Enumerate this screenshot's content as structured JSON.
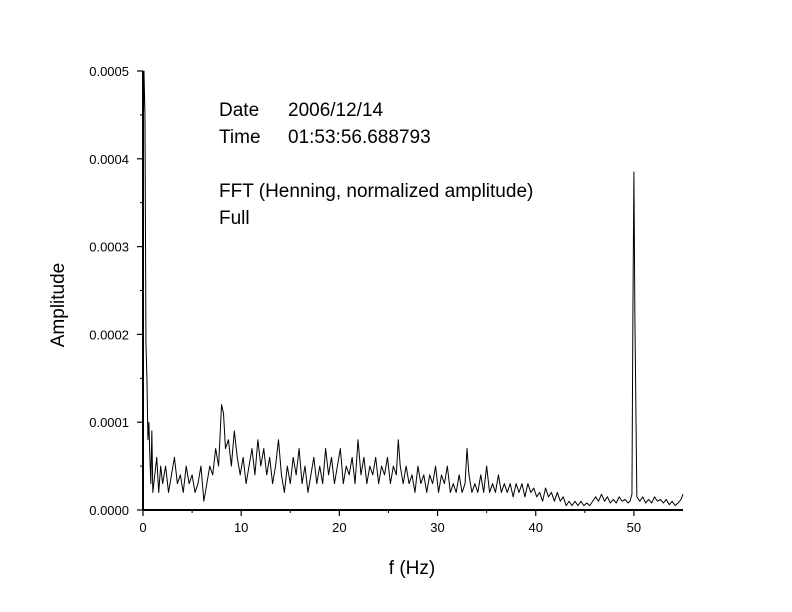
{
  "chart_data": {
    "type": "line",
    "title": "",
    "xlabel": "f (Hz)",
    "ylabel": "Amplitude",
    "xlim": [
      0,
      55
    ],
    "ylim": [
      0,
      0.0005
    ],
    "x_ticks": [
      "0",
      "10",
      "20",
      "30",
      "40",
      "50"
    ],
    "x_tick_values": [
      0,
      10,
      20,
      30,
      40,
      50
    ],
    "y_ticks": [
      "0.0000",
      "0.0001",
      "0.0002",
      "0.0003",
      "0.0004",
      "0.0005"
    ],
    "y_tick_values": [
      0,
      0.0001,
      0.0002,
      0.0003,
      0.0004,
      0.0005
    ],
    "grid": false,
    "annotations": {
      "date_label": "Date",
      "date_value": "2006/12/14",
      "time_label": "Time",
      "time_value": "01:53:56.688793",
      "method": "FFT (Henning, normalized amplitude)",
      "range": "Full"
    },
    "series": [
      {
        "color": "#000000",
        "points": [
          [
            0.0,
            0.0004
          ],
          [
            0.1,
            0.0005
          ],
          [
            0.2,
            0.00045
          ],
          [
            0.3,
            0.00019
          ],
          [
            0.4,
            0.00015
          ],
          [
            0.5,
            8e-05
          ],
          [
            0.6,
            0.0001
          ],
          [
            0.7,
            6e-05
          ],
          [
            0.8,
            3e-05
          ],
          [
            0.9,
            9e-05
          ],
          [
            1.0,
            2e-05
          ],
          [
            1.2,
            4e-05
          ],
          [
            1.4,
            6e-05
          ],
          [
            1.6,
            2e-05
          ],
          [
            1.8,
            5e-05
          ],
          [
            2.0,
            3e-05
          ],
          [
            2.3,
            5e-05
          ],
          [
            2.6,
            2e-05
          ],
          [
            2.9,
            4e-05
          ],
          [
            3.2,
            6e-05
          ],
          [
            3.5,
            3e-05
          ],
          [
            3.8,
            4e-05
          ],
          [
            4.1,
            2e-05
          ],
          [
            4.4,
            5e-05
          ],
          [
            4.7,
            3e-05
          ],
          [
            5.0,
            4e-05
          ],
          [
            5.3,
            2e-05
          ],
          [
            5.6,
            3e-05
          ],
          [
            5.9,
            5e-05
          ],
          [
            6.2,
            1e-05
          ],
          [
            6.5,
            3e-05
          ],
          [
            6.8,
            5e-05
          ],
          [
            7.1,
            4e-05
          ],
          [
            7.4,
            7e-05
          ],
          [
            7.7,
            5e-05
          ],
          [
            8.0,
            0.00012
          ],
          [
            8.2,
            0.00011
          ],
          [
            8.4,
            7e-05
          ],
          [
            8.7,
            8e-05
          ],
          [
            9.0,
            5e-05
          ],
          [
            9.3,
            9e-05
          ],
          [
            9.6,
            6e-05
          ],
          [
            9.9,
            4e-05
          ],
          [
            10.2,
            6e-05
          ],
          [
            10.5,
            3e-05
          ],
          [
            10.8,
            5e-05
          ],
          [
            11.1,
            7e-05
          ],
          [
            11.4,
            4e-05
          ],
          [
            11.7,
            8e-05
          ],
          [
            12.0,
            5e-05
          ],
          [
            12.3,
            7e-05
          ],
          [
            12.6,
            4e-05
          ],
          [
            12.9,
            6e-05
          ],
          [
            13.2,
            3e-05
          ],
          [
            13.5,
            5e-05
          ],
          [
            13.8,
            8e-05
          ],
          [
            14.1,
            4e-05
          ],
          [
            14.4,
            2e-05
          ],
          [
            14.7,
            5e-05
          ],
          [
            15.0,
            3e-05
          ],
          [
            15.3,
            6e-05
          ],
          [
            15.6,
            4e-05
          ],
          [
            15.9,
            7e-05
          ],
          [
            16.2,
            3e-05
          ],
          [
            16.5,
            5e-05
          ],
          [
            16.8,
            2e-05
          ],
          [
            17.1,
            4e-05
          ],
          [
            17.4,
            6e-05
          ],
          [
            17.7,
            3e-05
          ],
          [
            18.0,
            5e-05
          ],
          [
            18.3,
            3e-05
          ],
          [
            18.6,
            7e-05
          ],
          [
            18.9,
            4e-05
          ],
          [
            19.2,
            6e-05
          ],
          [
            19.5,
            3e-05
          ],
          [
            19.8,
            5e-05
          ],
          [
            20.1,
            7e-05
          ],
          [
            20.4,
            3e-05
          ],
          [
            20.7,
            5e-05
          ],
          [
            21.0,
            4e-05
          ],
          [
            21.3,
            6e-05
          ],
          [
            21.6,
            3e-05
          ],
          [
            21.9,
            8e-05
          ],
          [
            22.2,
            4e-05
          ],
          [
            22.5,
            6e-05
          ],
          [
            22.8,
            3e-05
          ],
          [
            23.1,
            5e-05
          ],
          [
            23.4,
            4e-05
          ],
          [
            23.7,
            6e-05
          ],
          [
            24.0,
            3e-05
          ],
          [
            24.3,
            5e-05
          ],
          [
            24.6,
            4e-05
          ],
          [
            24.9,
            6e-05
          ],
          [
            25.2,
            3e-05
          ],
          [
            25.5,
            5e-05
          ],
          [
            25.8,
            4e-05
          ],
          [
            26.0,
            8e-05
          ],
          [
            26.2,
            5e-05
          ],
          [
            26.5,
            3e-05
          ],
          [
            26.8,
            5e-05
          ],
          [
            27.1,
            3e-05
          ],
          [
            27.4,
            4e-05
          ],
          [
            27.7,
            2e-05
          ],
          [
            28.0,
            5e-05
          ],
          [
            28.3,
            3e-05
          ],
          [
            28.6,
            4e-05
          ],
          [
            28.9,
            2e-05
          ],
          [
            29.2,
            4e-05
          ],
          [
            29.5,
            3e-05
          ],
          [
            29.8,
            5e-05
          ],
          [
            30.1,
            2e-05
          ],
          [
            30.4,
            4e-05
          ],
          [
            30.7,
            3e-05
          ],
          [
            31.0,
            5e-05
          ],
          [
            31.3,
            2e-05
          ],
          [
            31.6,
            3e-05
          ],
          [
            31.9,
            2e-05
          ],
          [
            32.2,
            4e-05
          ],
          [
            32.5,
            2e-05
          ],
          [
            32.8,
            3e-05
          ],
          [
            33.0,
            7e-05
          ],
          [
            33.2,
            4e-05
          ],
          [
            33.5,
            2e-05
          ],
          [
            33.8,
            3e-05
          ],
          [
            34.1,
            2e-05
          ],
          [
            34.4,
            4e-05
          ],
          [
            34.7,
            2e-05
          ],
          [
            35.0,
            5e-05
          ],
          [
            35.3,
            2e-05
          ],
          [
            35.6,
            3e-05
          ],
          [
            35.9,
            2e-05
          ],
          [
            36.2,
            4e-05
          ],
          [
            36.5,
            2e-05
          ],
          [
            36.8,
            3e-05
          ],
          [
            37.1,
            2e-05
          ],
          [
            37.4,
            3e-05
          ],
          [
            37.7,
            1.5e-05
          ],
          [
            38.0,
            3e-05
          ],
          [
            38.3,
            2e-05
          ],
          [
            38.6,
            3e-05
          ],
          [
            38.9,
            1.5e-05
          ],
          [
            39.2,
            3e-05
          ],
          [
            39.5,
            2e-05
          ],
          [
            39.8,
            2.5e-05
          ],
          [
            40.1,
            1.5e-05
          ],
          [
            40.4,
            2e-05
          ],
          [
            40.7,
            1e-05
          ],
          [
            41.0,
            2.5e-05
          ],
          [
            41.3,
            1.5e-05
          ],
          [
            41.6,
            2e-05
          ],
          [
            41.9,
            1e-05
          ],
          [
            42.2,
            2e-05
          ],
          [
            42.5,
            1e-05
          ],
          [
            42.8,
            1.5e-05
          ],
          [
            43.1,
            5e-06
          ],
          [
            43.4,
            1e-05
          ],
          [
            43.7,
            5e-06
          ],
          [
            44.0,
            1e-05
          ],
          [
            44.3,
            5e-06
          ],
          [
            44.6,
            1e-05
          ],
          [
            44.9,
            5e-06
          ],
          [
            45.2,
            8e-06
          ],
          [
            45.5,
            5e-06
          ],
          [
            45.8,
            1e-05
          ],
          [
            46.1,
            1.5e-05
          ],
          [
            46.4,
            1e-05
          ],
          [
            46.7,
            1.8e-05
          ],
          [
            47.0,
            1e-05
          ],
          [
            47.3,
            1.5e-05
          ],
          [
            47.6,
            8e-06
          ],
          [
            47.9,
            1.2e-05
          ],
          [
            48.2,
            8e-06
          ],
          [
            48.5,
            1.5e-05
          ],
          [
            48.8,
            1e-05
          ],
          [
            49.1,
            1.2e-05
          ],
          [
            49.4,
            8e-06
          ],
          [
            49.6,
            1e-05
          ],
          [
            49.8,
            1.8e-05
          ],
          [
            49.9,
            0.00023
          ],
          [
            50.0,
            0.000385
          ],
          [
            50.1,
            0.00022
          ],
          [
            50.3,
            1.5e-05
          ],
          [
            50.6,
            1e-05
          ],
          [
            50.9,
            1.5e-05
          ],
          [
            51.2,
            8e-06
          ],
          [
            51.5,
            1.2e-05
          ],
          [
            51.8,
            8e-06
          ],
          [
            52.1,
            1.5e-05
          ],
          [
            52.4,
            1e-05
          ],
          [
            52.7,
            1.2e-05
          ],
          [
            53.0,
            8e-06
          ],
          [
            53.3,
            1.2e-05
          ],
          [
            53.6,
            6e-06
          ],
          [
            53.9,
            1e-05
          ],
          [
            54.2,
            5e-06
          ],
          [
            54.5,
            8e-06
          ],
          [
            54.8,
            1.2e-05
          ],
          [
            55.0,
            1.8e-05
          ]
        ]
      }
    ]
  }
}
